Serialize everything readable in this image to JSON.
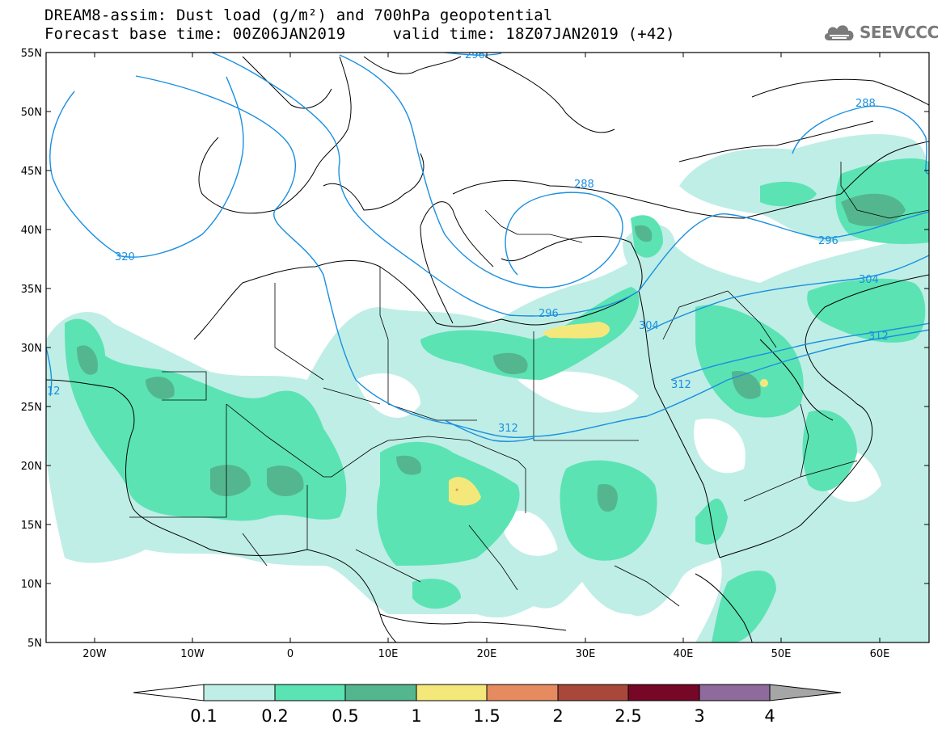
{
  "title": {
    "line1": "DREAM8-assim: Dust load (g/m²) and 700hPa geopotential",
    "line2": "Forecast base time: 00Z06JAN2019     valid time: 18Z07JAN2019 (+42)"
  },
  "logo": {
    "text": "SEEVCCC",
    "icon": "cloud-logo-icon"
  },
  "axes": {
    "lat_labels": [
      "55N",
      "50N",
      "45N",
      "40N",
      "35N",
      "30N",
      "25N",
      "20N",
      "15N",
      "10N",
      "5N"
    ],
    "lon_labels": [
      "20W",
      "10W",
      "0",
      "10E",
      "20E",
      "30E",
      "40E",
      "50E",
      "60E"
    ]
  },
  "contours": {
    "labels": [
      "320",
      "296",
      "288",
      "288",
      "296",
      "304",
      "304",
      "312",
      "312",
      "312",
      "296",
      "12"
    ]
  },
  "colorbar": {
    "labels": [
      "0.1",
      "0.2",
      "0.5",
      "1",
      "1.5",
      "2",
      "2.5",
      "3",
      "4"
    ],
    "colors": [
      "#ffffff",
      "#bfeee6",
      "#5be3b4",
      "#54b68f",
      "#f5e87a",
      "#e68b60",
      "#a8473a",
      "#760727",
      "#8e6b9c",
      "#a6a6a6"
    ]
  },
  "legend_colors": {
    "dust_0.1": "#bfeee6",
    "dust_0.2": "#5be3b4",
    "dust_0.5": "#54b68f",
    "dust_1": "#f5e87a",
    "dust_1.5": "#e68b60",
    "contour": "#1a8fe0"
  }
}
